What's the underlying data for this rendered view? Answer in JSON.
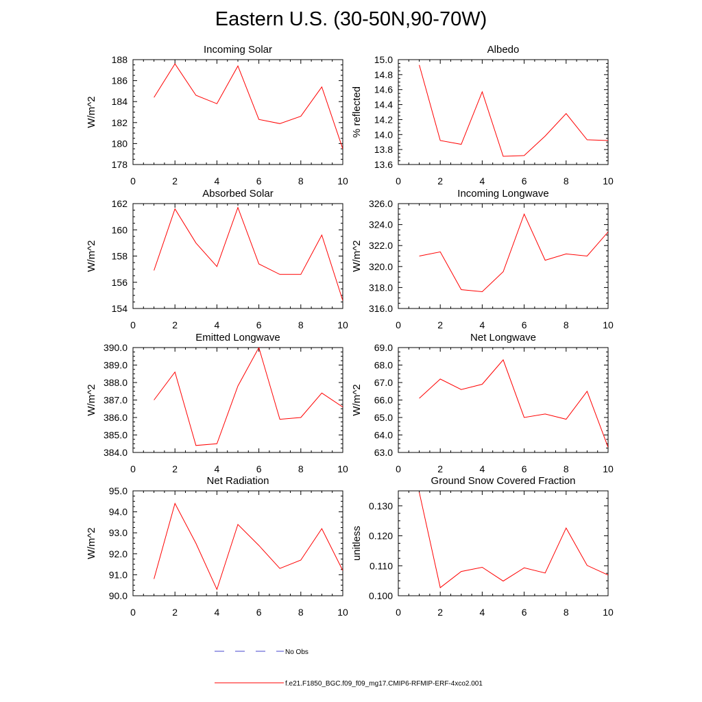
{
  "figure": {
    "title": "Eastern U.S. (30-50N,90-70W)"
  },
  "legend": {
    "entries": [
      {
        "label": "No Obs",
        "color": "#4444cc",
        "style": "dashed"
      },
      {
        "label": "f.e21.F1850_BGC.f09_f09_mg17.CMIP6-RFMIP-ERF-4xco2.001",
        "color": "#ff0000",
        "style": "solid"
      }
    ]
  },
  "chart_data": [
    {
      "type": "line",
      "title": "Incoming Solar",
      "xlabel": "",
      "ylabel": "W/m^2",
      "xlim": [
        0,
        10
      ],
      "ylim": [
        178,
        188
      ],
      "xticks": [
        "0",
        "2",
        "4",
        "6",
        "8",
        "10"
      ],
      "yticks": [
        "178",
        "180",
        "182",
        "184",
        "186",
        "188"
      ],
      "series": [
        {
          "color": "#ff0000",
          "x": [
            1,
            2,
            3,
            4,
            5,
            6,
            7,
            8,
            9,
            10
          ],
          "values": [
            184.4,
            187.6,
            184.6,
            183.8,
            187.4,
            182.3,
            181.9,
            182.6,
            185.4,
            179.5
          ]
        }
      ]
    },
    {
      "type": "line",
      "title": "Albedo",
      "xlabel": "",
      "ylabel": "% reflected",
      "xlim": [
        0,
        10
      ],
      "ylim": [
        13.6,
        15.0
      ],
      "xticks": [
        "0",
        "2",
        "4",
        "6",
        "8",
        "10"
      ],
      "yticks": [
        "13.6",
        "13.8",
        "14.0",
        "14.2",
        "14.4",
        "14.6",
        "14.8",
        "15.0"
      ],
      "series": [
        {
          "color": "#ff0000",
          "x": [
            1,
            2,
            3,
            4,
            5,
            6,
            7,
            8,
            9,
            10
          ],
          "values": [
            14.93,
            13.92,
            13.87,
            14.57,
            13.71,
            13.72,
            13.98,
            14.28,
            13.93,
            13.92
          ]
        }
      ]
    },
    {
      "type": "line",
      "title": "Absorbed Solar",
      "xlabel": "",
      "ylabel": "W/m^2",
      "xlim": [
        0,
        10
      ],
      "ylim": [
        154,
        162
      ],
      "xticks": [
        "0",
        "2",
        "4",
        "6",
        "8",
        "10"
      ],
      "yticks": [
        "154",
        "156",
        "158",
        "160",
        "162"
      ],
      "series": [
        {
          "color": "#ff0000",
          "x": [
            1,
            2,
            3,
            4,
            5,
            6,
            7,
            8,
            9,
            10
          ],
          "values": [
            156.9,
            161.6,
            159.0,
            157.2,
            161.7,
            157.4,
            156.6,
            156.6,
            159.6,
            154.6
          ]
        }
      ]
    },
    {
      "type": "line",
      "title": "Incoming Longwave",
      "xlabel": "",
      "ylabel": "W/m^2",
      "xlim": [
        0,
        10
      ],
      "ylim": [
        316.0,
        326.0
      ],
      "xticks": [
        "0",
        "2",
        "4",
        "6",
        "8",
        "10"
      ],
      "yticks": [
        "316.0",
        "318.0",
        "320.0",
        "322.0",
        "324.0",
        "326.0"
      ],
      "series": [
        {
          "color": "#ff0000",
          "x": [
            1,
            2,
            3,
            4,
            5,
            6,
            7,
            8,
            9,
            10
          ],
          "values": [
            321.0,
            321.4,
            317.8,
            317.6,
            319.5,
            325.0,
            320.6,
            321.2,
            321.0,
            323.3
          ]
        }
      ]
    },
    {
      "type": "line",
      "title": "Emitted Longwave",
      "xlabel": "",
      "ylabel": "W/m^2",
      "xlim": [
        0,
        10
      ],
      "ylim": [
        384.0,
        390.0
      ],
      "xticks": [
        "0",
        "2",
        "4",
        "6",
        "8",
        "10"
      ],
      "yticks": [
        "384.0",
        "385.0",
        "386.0",
        "387.0",
        "388.0",
        "389.0",
        "390.0"
      ],
      "series": [
        {
          "color": "#ff0000",
          "x": [
            1,
            2,
            3,
            4,
            5,
            6,
            7,
            8,
            9,
            10
          ],
          "values": [
            387.0,
            388.6,
            384.4,
            384.5,
            387.8,
            390.0,
            385.9,
            386.0,
            387.4,
            386.6
          ]
        }
      ]
    },
    {
      "type": "line",
      "title": "Net Longwave",
      "xlabel": "",
      "ylabel": "W/m^2",
      "xlim": [
        0,
        10
      ],
      "ylim": [
        63.0,
        69.0
      ],
      "xticks": [
        "0",
        "2",
        "4",
        "6",
        "8",
        "10"
      ],
      "yticks": [
        "63.0",
        "64.0",
        "65.0",
        "66.0",
        "67.0",
        "68.0",
        "69.0"
      ],
      "series": [
        {
          "color": "#ff0000",
          "x": [
            1,
            2,
            3,
            4,
            5,
            6,
            7,
            8,
            9,
            10
          ],
          "values": [
            66.1,
            67.2,
            66.6,
            66.9,
            68.3,
            65.0,
            65.2,
            64.9,
            66.5,
            63.3
          ]
        }
      ]
    },
    {
      "type": "line",
      "title": "Net Radiation",
      "xlabel": "",
      "ylabel": "W/m^2",
      "xlim": [
        0,
        10
      ],
      "ylim": [
        90.0,
        95.0
      ],
      "xticks": [
        "0",
        "2",
        "4",
        "6",
        "8",
        "10"
      ],
      "yticks": [
        "90.0",
        "91.0",
        "92.0",
        "93.0",
        "94.0",
        "95.0"
      ],
      "series": [
        {
          "color": "#ff0000",
          "x": [
            1,
            2,
            3,
            4,
            5,
            6,
            7,
            8,
            9,
            10
          ],
          "values": [
            90.8,
            94.4,
            92.5,
            90.3,
            93.4,
            92.4,
            91.3,
            91.7,
            93.2,
            91.2
          ]
        }
      ]
    },
    {
      "type": "line",
      "title": "Ground Snow Covered Fraction",
      "xlabel": "",
      "ylabel": "unitless",
      "xlim": [
        0,
        10
      ],
      "ylim": [
        0.1,
        0.135
      ],
      "xticks": [
        "0",
        "2",
        "4",
        "6",
        "8",
        "10"
      ],
      "yticks": [
        "0.100",
        "0.110",
        "0.120",
        "0.130"
      ],
      "ytick_values": [
        0.1,
        0.11,
        0.12,
        0.13
      ],
      "series": [
        {
          "color": "#ff0000",
          "x": [
            1,
            2,
            3,
            4,
            5,
            6,
            7,
            8,
            9,
            10
          ],
          "values": [
            0.1345,
            0.1027,
            0.1081,
            0.1095,
            0.1049,
            0.1093,
            0.1076,
            0.1226,
            0.1101,
            0.1069
          ]
        }
      ]
    }
  ]
}
